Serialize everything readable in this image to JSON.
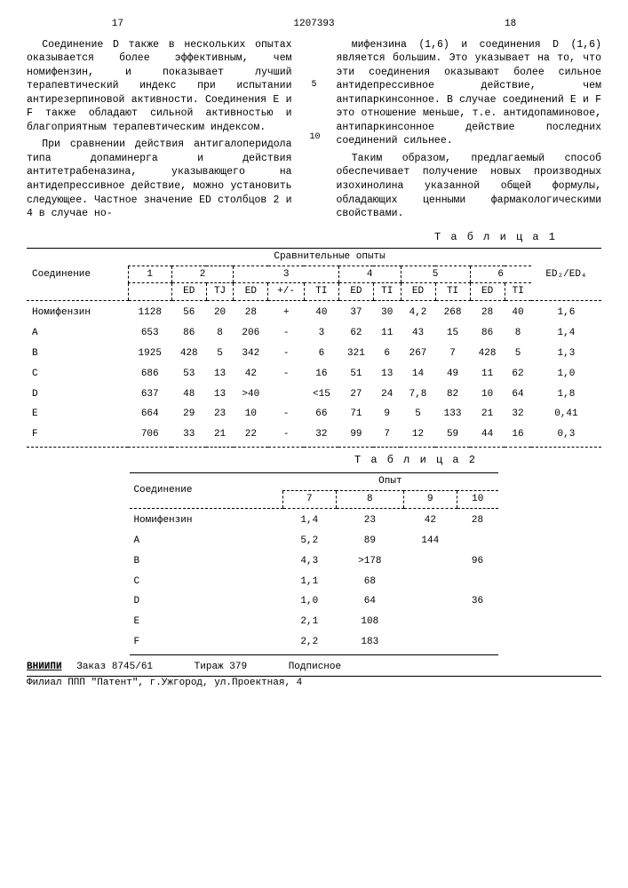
{
  "header": {
    "left_page": "17",
    "doc_number": "1207393",
    "right_page": "18"
  },
  "left_col": {
    "p1": "Соединение D также в нескольких опытах оказывается более эффективным, чем номифензин, и показывает лучший терапевтический индекс при испытании антирезерпиновой активности. Соединения E и F также обладают сильной активностью и благоприятным терапевтическим индексом.",
    "p2": "При сравнении действия антигалоперидола типа допаминерга и действия антитетрабеназина, указывающего на антидепрессивное действие, можно установить следующее. Частное значение ED столбцов 2 и 4 в случае но-"
  },
  "right_col": {
    "p1": "мифензина (1,6) и соединения D (1,6) является большим. Это указывает на то, что эти соединения оказывают более сильное антидепрессивное действие, чем антипаркинсонное. В случае соединений E и F это отношение меньше, т.е. антидопаминовое, антипаркинсонное действие последних соединений сильнее.",
    "p2": "Таким образом, предлагаемый способ обеспечивает получение новых производных изохинолина указанной общей формулы, обладающих ценными фармакологическими свойствами."
  },
  "margin_nums": {
    "five": "5",
    "ten": "10"
  },
  "table1": {
    "label": "Т а б л и ц а  1",
    "col_compound": "Соединение",
    "col_group": "Сравнительные опыты",
    "groups": [
      "1",
      "2",
      "3",
      "4",
      "5",
      "6"
    ],
    "sub": {
      "ed": "ED",
      "ti": "TI",
      "tj": "TJ",
      "pm": "+/-"
    },
    "ratio": "ED₂/ED₄",
    "rows": [
      {
        "n": "Номифензин",
        "c1": "1128",
        "c2a": "56",
        "c2b": "20",
        "c3a": "28",
        "c3b": "+",
        "c3c": "40",
        "c4a": "37",
        "c4b": "30",
        "c5a": "4,2",
        "c5b": "268",
        "c6a": "28",
        "c6b": "40",
        "r": "1,6"
      },
      {
        "n": "A",
        "c1": "653",
        "c2a": "86",
        "c2b": "8",
        "c3a": "206",
        "c3b": "-",
        "c3c": "3",
        "c4a": "62",
        "c4b": "11",
        "c5a": "43",
        "c5b": "15",
        "c6a": "86",
        "c6b": "8",
        "r": "1,4"
      },
      {
        "n": "B",
        "c1": "1925",
        "c2a": "428",
        "c2b": "5",
        "c3a": "342",
        "c3b": "-",
        "c3c": "6",
        "c4a": "321",
        "c4b": "6",
        "c5a": "267",
        "c5b": "7",
        "c6a": "428",
        "c6b": "5",
        "r": "1,3"
      },
      {
        "n": "C",
        "c1": "686",
        "c2a": "53",
        "c2b": "13",
        "c3a": "42",
        "c3b": "-",
        "c3c": "16",
        "c4a": "51",
        "c4b": "13",
        "c5a": "14",
        "c5b": "49",
        "c6a": "11",
        "c6b": "62",
        "r": "1,0"
      },
      {
        "n": "D",
        "c1": "637",
        "c2a": "48",
        "c2b": "13",
        "c3a": ">40",
        "c3b": "",
        "c3c": "<15",
        "c4a": "27",
        "c4b": "24",
        "c5a": "7,8",
        "c5b": "82",
        "c6a": "10",
        "c6b": "64",
        "r": "1,8"
      },
      {
        "n": "E",
        "c1": "664",
        "c2a": "29",
        "c2b": "23",
        "c3a": "10",
        "c3b": "-",
        "c3c": "66",
        "c4a": "71",
        "c4b": "9",
        "c5a": "5",
        "c5b": "133",
        "c6a": "21",
        "c6b": "32",
        "r": "0,41"
      },
      {
        "n": "F",
        "c1": "706",
        "c2a": "33",
        "c2b": "21",
        "c3a": "22",
        "c3b": "-",
        "c3c": "32",
        "c4a": "99",
        "c4b": "7",
        "c5a": "12",
        "c5b": "59",
        "c6a": "44",
        "c6b": "16",
        "r": "0,3"
      }
    ]
  },
  "table2": {
    "label": "Т а б л и ц а  2",
    "col_compound": "Соединение",
    "col_group": "Опыт",
    "cols": [
      "7",
      "8",
      "9",
      "10"
    ],
    "rows": [
      {
        "n": "Номифензин",
        "v": [
          "1,4",
          "23",
          "42",
          "28"
        ]
      },
      {
        "n": "A",
        "v": [
          "5,2",
          "89",
          "144",
          ""
        ]
      },
      {
        "n": "B",
        "v": [
          "4,3",
          ">178",
          "",
          "96"
        ]
      },
      {
        "n": "C",
        "v": [
          "1,1",
          "68",
          "",
          ""
        ]
      },
      {
        "n": "D",
        "v": [
          "1,0",
          "64",
          "",
          "36"
        ]
      },
      {
        "n": "E",
        "v": [
          "2,1",
          "108",
          "",
          ""
        ]
      },
      {
        "n": "F",
        "v": [
          "2,2",
          "183",
          "",
          ""
        ]
      }
    ]
  },
  "footer": {
    "org": "ВНИИПИ",
    "order": "Заказ 8745/61",
    "tirazh": "Тираж 379",
    "sub": "Подписное",
    "addr": "Филиал ППП \"Патент\", г.Ужгород, ул.Проектная, 4"
  }
}
